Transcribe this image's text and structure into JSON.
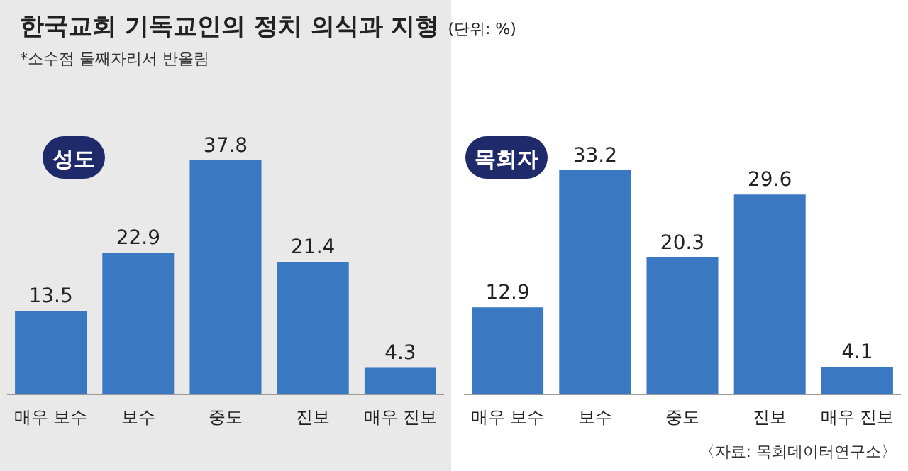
{
  "chart_data": [
    {
      "type": "bar",
      "title": "성도",
      "annotations": [
        "한국교회 기독교인의 정치 의식과 지형",
        "(단위: %)",
        "*소수점 둘째자리서 반올림"
      ],
      "categories": [
        "매우 보수",
        "보수",
        "중도",
        "진보",
        "매우 진보"
      ],
      "values": [
        13.5,
        22.9,
        37.8,
        21.4,
        4.3
      ],
      "color": "#3b78c2",
      "data_labels": true
    },
    {
      "type": "bar",
      "title": "목회자",
      "annotations": [
        "〈자료: 목회데이터연구소〉"
      ],
      "categories": [
        "매우 보수",
        "보수",
        "중도",
        "진보",
        "매우 진보"
      ],
      "values": [
        12.9,
        33.2,
        20.3,
        29.6,
        4.1
      ],
      "color": "#3b78c2",
      "data_labels": true
    }
  ]
}
